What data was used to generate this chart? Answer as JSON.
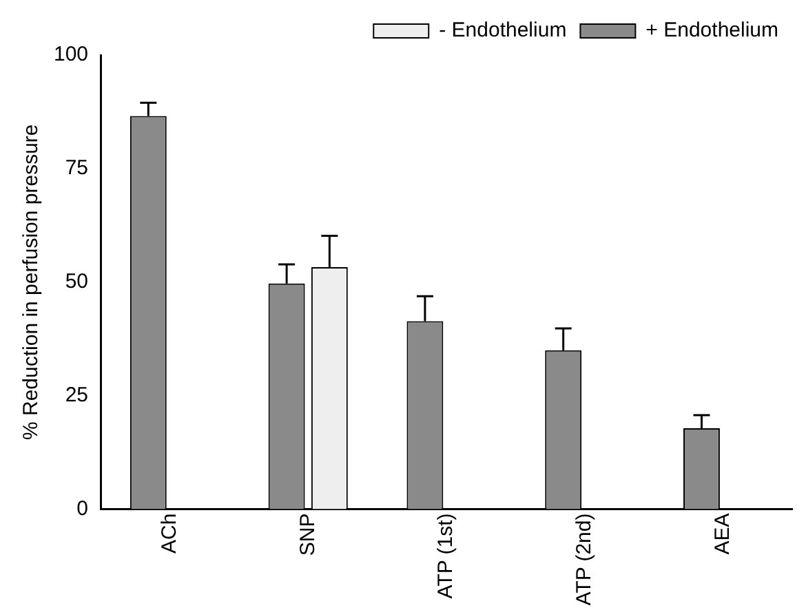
{
  "chart_data": {
    "type": "bar",
    "ylabel": "% Reduction in perfusion pressure",
    "categories": [
      "ACh",
      "SNP",
      "ATP (1st)",
      "ATP (2nd)",
      "AEA"
    ],
    "series": [
      {
        "name": "+ Endothelium",
        "color": "#8a8a8a",
        "values": [
          86.6,
          49.7,
          41.4,
          35.0,
          17.8
        ],
        "errors": [
          [
            86.6,
            89.5
          ],
          [
            49.7,
            53.9
          ],
          [
            41.4,
            46.9
          ],
          [
            35.0,
            39.8
          ],
          [
            17.8,
            20.7
          ]
        ]
      },
      {
        "name": "- Endothelium",
        "color": "#eeeeee",
        "values": [
          null,
          53.3,
          null,
          null,
          null
        ],
        "errors": [
          null,
          [
            53.3,
            60.2
          ],
          null,
          null,
          null
        ]
      }
    ],
    "ylim": [
      0,
      100
    ],
    "yticks": [
      0,
      25,
      50,
      75,
      100
    ],
    "grid": false,
    "legend": "top right"
  }
}
